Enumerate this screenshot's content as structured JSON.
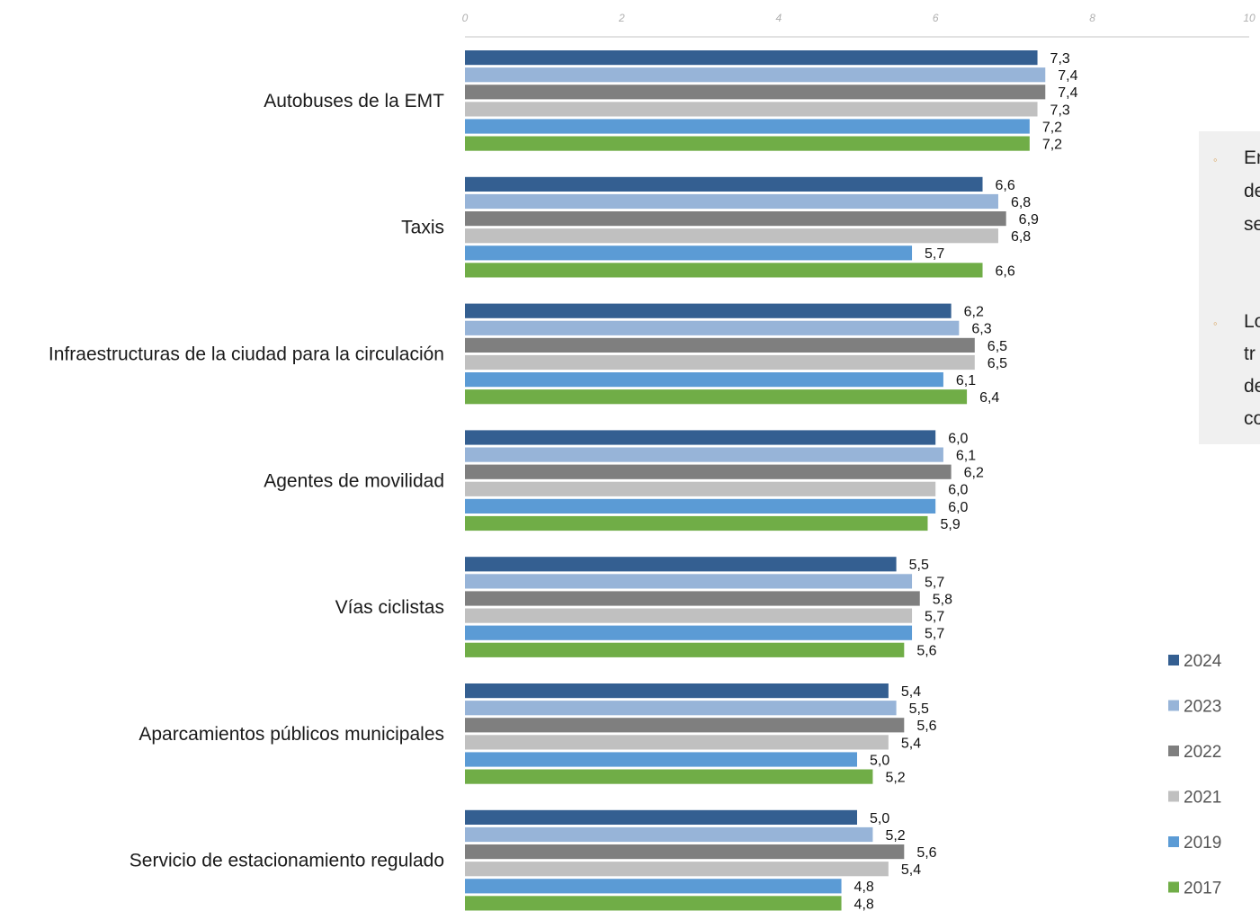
{
  "chart_data": {
    "type": "bar",
    "orientation": "horizontal",
    "title": "",
    "xlabel": "",
    "ylabel": "",
    "xlim": [
      0,
      10
    ],
    "x_ticks": [
      "0",
      "2",
      "4",
      "6",
      "8",
      "10"
    ],
    "grid": false,
    "legend_position": "bottom-right",
    "categories": [
      "Autobuses de la EMT",
      "Taxis",
      "Infraestructuras de la ciudad para la circulación",
      "Agentes de movilidad",
      "Vías ciclistas",
      "Aparcamientos públicos municipales",
      "Servicio de estacionamiento regulado"
    ],
    "series": [
      {
        "name": "2024",
        "color": "#345f91",
        "values": [
          7.3,
          6.6,
          6.2,
          6.0,
          5.5,
          5.4,
          5.0
        ],
        "labels": [
          "7,3",
          "6,6",
          "6,2",
          "6,0",
          "5,5",
          "5,4",
          "5,0"
        ]
      },
      {
        "name": "2023",
        "color": "#97b4d8",
        "values": [
          7.4,
          6.8,
          6.3,
          6.1,
          5.7,
          5.5,
          5.2
        ],
        "labels": [
          "7,4",
          "6,8",
          "6,3",
          "6,1",
          "5,7",
          "5,5",
          "5,2"
        ]
      },
      {
        "name": "2022",
        "color": "#7f7f7f",
        "values": [
          7.4,
          6.9,
          6.5,
          6.2,
          5.8,
          5.6,
          5.6
        ],
        "labels": [
          "7,4",
          "6,9",
          "6,5",
          "6,2",
          "5,8",
          "5,6",
          "5,6"
        ]
      },
      {
        "name": "2021",
        "color": "#c0c0c0",
        "values": [
          7.3,
          6.8,
          6.5,
          6.0,
          5.7,
          5.4,
          5.4
        ],
        "labels": [
          "7,3",
          "6,8",
          "6,5",
          "6,0",
          "5,7",
          "5,4",
          "5,4"
        ]
      },
      {
        "name": "2019",
        "color": "#5b9bd5",
        "values": [
          7.2,
          5.7,
          6.1,
          6.0,
          5.7,
          5.0,
          4.8
        ],
        "labels": [
          "7,2",
          "5,7",
          "6,1",
          "6,0",
          "5,7",
          "5,0",
          "4,8"
        ]
      },
      {
        "name": "2017",
        "color": "#70ad47",
        "values": [
          7.2,
          6.6,
          6.4,
          5.9,
          5.6,
          5.2,
          4.8
        ],
        "labels": [
          "7,2",
          "6,6",
          "6,4",
          "5,9",
          "5,6",
          "5,2",
          "4,8"
        ]
      }
    ]
  },
  "side_panel": {
    "bullet": "◦",
    "items": [
      {
        "lines": [
          "En",
          "de",
          "se"
        ]
      },
      {
        "lines": [
          "Lo",
          "tr",
          "de",
          "co"
        ]
      }
    ]
  }
}
